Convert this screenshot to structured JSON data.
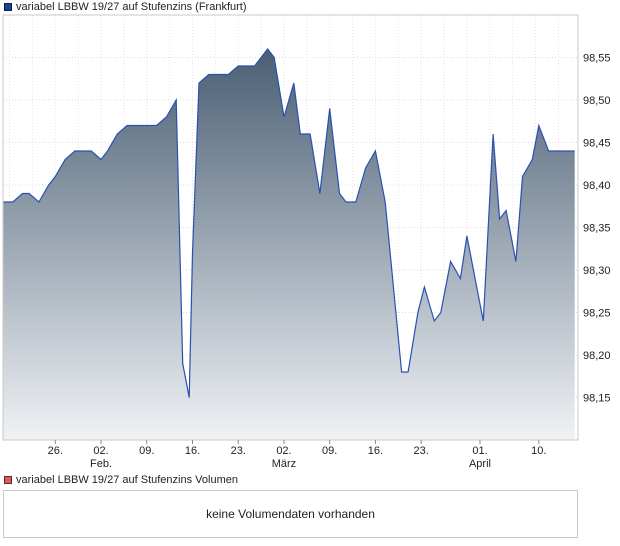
{
  "legend": {
    "price_label": "variabel LBBW 19/27 auf Stufenzins (Frankfurt)",
    "price_color": "#1f3f8f",
    "volume_label": "variabel LBBW 19/27 auf Stufenzins Volumen",
    "volume_color": "#d06060"
  },
  "volume_panel": {
    "message": "keine Volumendaten vorhanden"
  },
  "chart_data": {
    "type": "area",
    "ylim": [
      98.1,
      98.6
    ],
    "yticks": [
      "98,15",
      "98,20",
      "98,25",
      "98,30",
      "98,35",
      "98,40",
      "98,45",
      "98,50",
      "98,55"
    ],
    "ytick_values": [
      98.15,
      98.2,
      98.25,
      98.3,
      98.35,
      98.4,
      98.45,
      98.5,
      98.55
    ],
    "x_ticks": [
      {
        "label": "26.",
        "month": ""
      },
      {
        "label": "02.",
        "month": "Feb."
      },
      {
        "label": "09.",
        "month": ""
      },
      {
        "label": "16.",
        "month": ""
      },
      {
        "label": "23.",
        "month": ""
      },
      {
        "label": "02.",
        "month": "März"
      },
      {
        "label": "09.",
        "month": ""
      },
      {
        "label": "16.",
        "month": ""
      },
      {
        "label": "23.",
        "month": ""
      },
      {
        "label": "01.",
        "month": "April"
      },
      {
        "label": "10.",
        "month": ""
      }
    ],
    "x_tick_days": [
      26,
      33,
      40,
      47,
      54,
      61,
      68,
      75,
      82,
      91,
      100
    ],
    "x_range_days": [
      18,
      106
    ],
    "line_color": "#2a50b0",
    "fill_top_color": "#4a5f74",
    "fill_bottom_color": "#f0f2f5",
    "grid": true,
    "series": [
      {
        "x": [
          18,
          19.5,
          21,
          22,
          23.5,
          25,
          26,
          27.5,
          29,
          30.5,
          31.5,
          33,
          34,
          35.5,
          37,
          38.5,
          40,
          41.5,
          43,
          44.5,
          45.5,
          46.5,
          47,
          48,
          49.5,
          51,
          52.5,
          54,
          56.5,
          57.5,
          58.5,
          59.5,
          61,
          62.5,
          63.5,
          65,
          66.5,
          68,
          69.5,
          70.5,
          72,
          73.5,
          75,
          76.5,
          77.5,
          79,
          80,
          81.5,
          82.5,
          84,
          85,
          86.5,
          88,
          89,
          90.5,
          91.5,
          93,
          94,
          95,
          96.5,
          97.5,
          99,
          100,
          101.5,
          103,
          104,
          105.5
        ],
        "values": [
          98.38,
          98.38,
          98.39,
          98.39,
          98.38,
          98.4,
          98.41,
          98.43,
          98.44,
          98.44,
          98.44,
          98.43,
          98.44,
          98.46,
          98.47,
          98.47,
          98.47,
          98.47,
          98.48,
          98.5,
          98.19,
          98.15,
          98.32,
          98.52,
          98.53,
          98.53,
          98.53,
          98.54,
          98.54,
          98.55,
          98.56,
          98.55,
          98.48,
          98.52,
          98.46,
          98.46,
          98.39,
          98.49,
          98.39,
          98.38,
          98.38,
          98.42,
          98.44,
          98.38,
          98.3,
          98.18,
          98.18,
          98.25,
          98.28,
          98.24,
          98.25,
          98.31,
          98.29,
          98.34,
          98.28,
          98.24,
          98.46,
          98.36,
          98.37,
          98.31,
          98.41,
          98.43,
          98.47,
          98.44,
          98.44,
          98.44,
          98.44
        ]
      }
    ]
  }
}
